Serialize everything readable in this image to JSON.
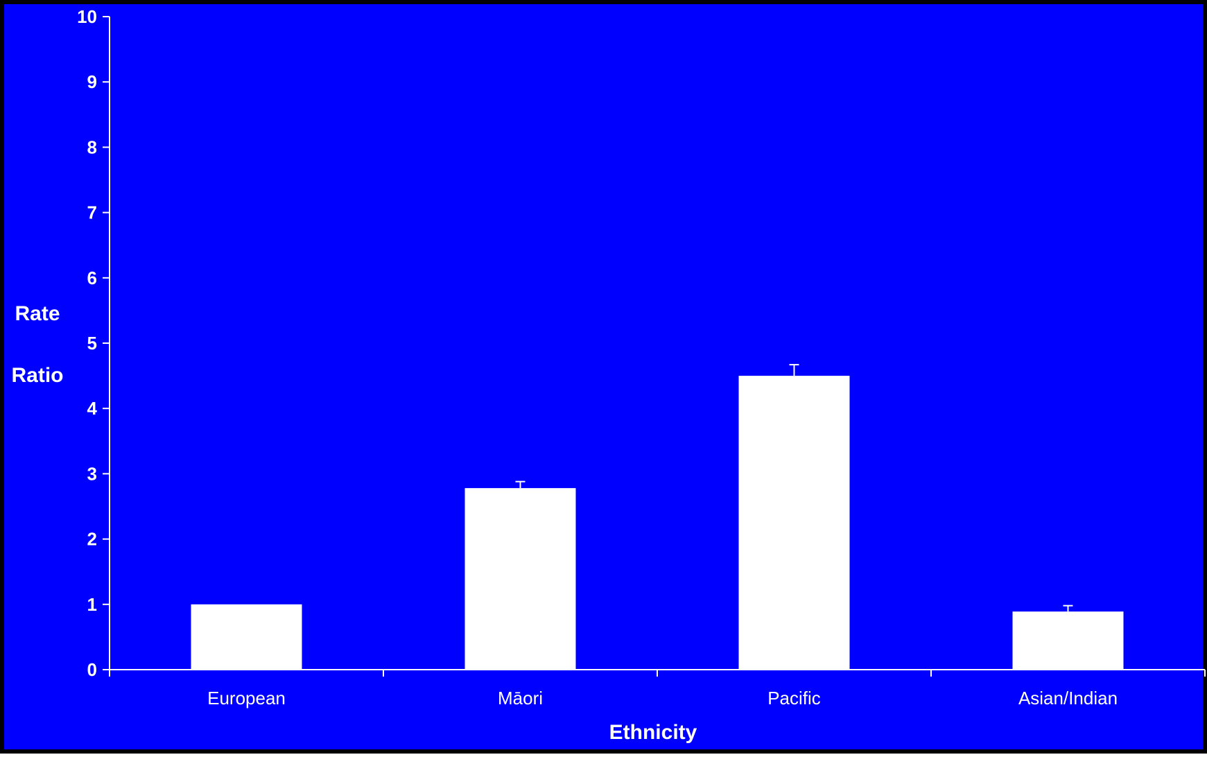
{
  "chart_data": {
    "type": "bar",
    "categories": [
      "European",
      "Māori",
      "Pacific",
      "Asian/Indian"
    ],
    "series": [
      {
        "values": [
          1.0,
          2.78,
          4.5,
          0.89
        ],
        "error_upper": [
          1.0,
          2.88,
          4.67,
          0.98
        ]
      }
    ],
    "xlabel": "Ethnicity",
    "ylabel_lines": [
      "Rate",
      "Ratio"
    ],
    "ylim": [
      0,
      10
    ],
    "yticks": [
      "0",
      "1",
      "2",
      "3",
      "4",
      "5",
      "6",
      "7",
      "8",
      "9",
      "10"
    ],
    "grid": false,
    "legend": "none",
    "colors": {
      "background": "#0000ff",
      "bar": "#ffffff",
      "axis": "#ffffff",
      "text": "#ffffff",
      "border": "#000000"
    }
  }
}
